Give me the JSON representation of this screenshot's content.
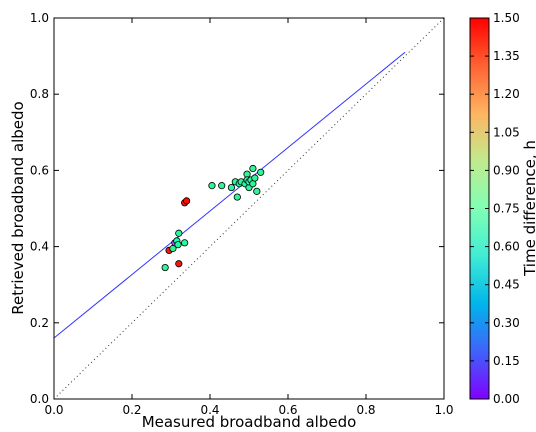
{
  "chart_data": {
    "type": "scatter",
    "title": "",
    "xlabel": "Measured broadband albedo",
    "ylabel": "Retrieved broadband albedo",
    "xlim": [
      0.0,
      1.0
    ],
    "ylim": [
      0.0,
      1.0
    ],
    "x_ticks": [
      "0.0",
      "0.2",
      "0.4",
      "0.6",
      "0.8",
      "1.0"
    ],
    "y_ticks": [
      "0.0",
      "0.2",
      "0.4",
      "0.6",
      "0.8",
      "1.0"
    ],
    "grid": false,
    "colorbar": {
      "label": "Time difference, h",
      "range": [
        0.0,
        1.5
      ],
      "colormap": "rainbow",
      "ticks": [
        "0.00",
        "0.15",
        "0.30",
        "0.45",
        "0.60",
        "0.75",
        "0.90",
        "1.05",
        "1.20",
        "1.35",
        "1.50"
      ]
    },
    "lines": [
      {
        "style": "dotted",
        "color": "#333333",
        "x": [
          0.0,
          1.0
        ],
        "y": [
          0.0,
          1.0
        ]
      },
      {
        "style": "solid",
        "color": "#3333ff",
        "x": [
          0.0,
          0.9
        ],
        "y": [
          0.16,
          0.91
        ]
      }
    ],
    "points": [
      {
        "x": 0.285,
        "y": 0.345,
        "c": 0.88
      },
      {
        "x": 0.295,
        "y": 0.39,
        "c": 1.45
      },
      {
        "x": 0.305,
        "y": 0.395,
        "c": 0.9
      },
      {
        "x": 0.31,
        "y": 0.41,
        "c": 0.12
      },
      {
        "x": 0.315,
        "y": 0.415,
        "c": 0.7
      },
      {
        "x": 0.318,
        "y": 0.405,
        "c": 0.85
      },
      {
        "x": 0.32,
        "y": 0.435,
        "c": 0.88
      },
      {
        "x": 0.32,
        "y": 0.355,
        "c": 1.45
      },
      {
        "x": 0.335,
        "y": 0.41,
        "c": 0.85
      },
      {
        "x": 0.335,
        "y": 0.515,
        "c": 1.45
      },
      {
        "x": 0.34,
        "y": 0.52,
        "c": 1.48
      },
      {
        "x": 0.405,
        "y": 0.56,
        "c": 0.88
      },
      {
        "x": 0.43,
        "y": 0.56,
        "c": 0.9
      },
      {
        "x": 0.455,
        "y": 0.555,
        "c": 0.88
      },
      {
        "x": 0.465,
        "y": 0.57,
        "c": 0.88
      },
      {
        "x": 0.47,
        "y": 0.53,
        "c": 0.88
      },
      {
        "x": 0.475,
        "y": 0.565,
        "c": 0.75
      },
      {
        "x": 0.48,
        "y": 0.57,
        "c": 0.88
      },
      {
        "x": 0.49,
        "y": 0.565,
        "c": 0.85
      },
      {
        "x": 0.495,
        "y": 0.59,
        "c": 0.9
      },
      {
        "x": 0.495,
        "y": 0.575,
        "c": 0.88
      },
      {
        "x": 0.5,
        "y": 0.555,
        "c": 0.88
      },
      {
        "x": 0.5,
        "y": 0.57,
        "c": 0.6
      },
      {
        "x": 0.505,
        "y": 0.575,
        "c": 0.88
      },
      {
        "x": 0.51,
        "y": 0.565,
        "c": 0.88
      },
      {
        "x": 0.51,
        "y": 0.605,
        "c": 0.9
      },
      {
        "x": 0.515,
        "y": 0.58,
        "c": 0.88
      },
      {
        "x": 0.52,
        "y": 0.545,
        "c": 0.9
      },
      {
        "x": 0.53,
        "y": 0.595,
        "c": 0.88
      }
    ]
  }
}
